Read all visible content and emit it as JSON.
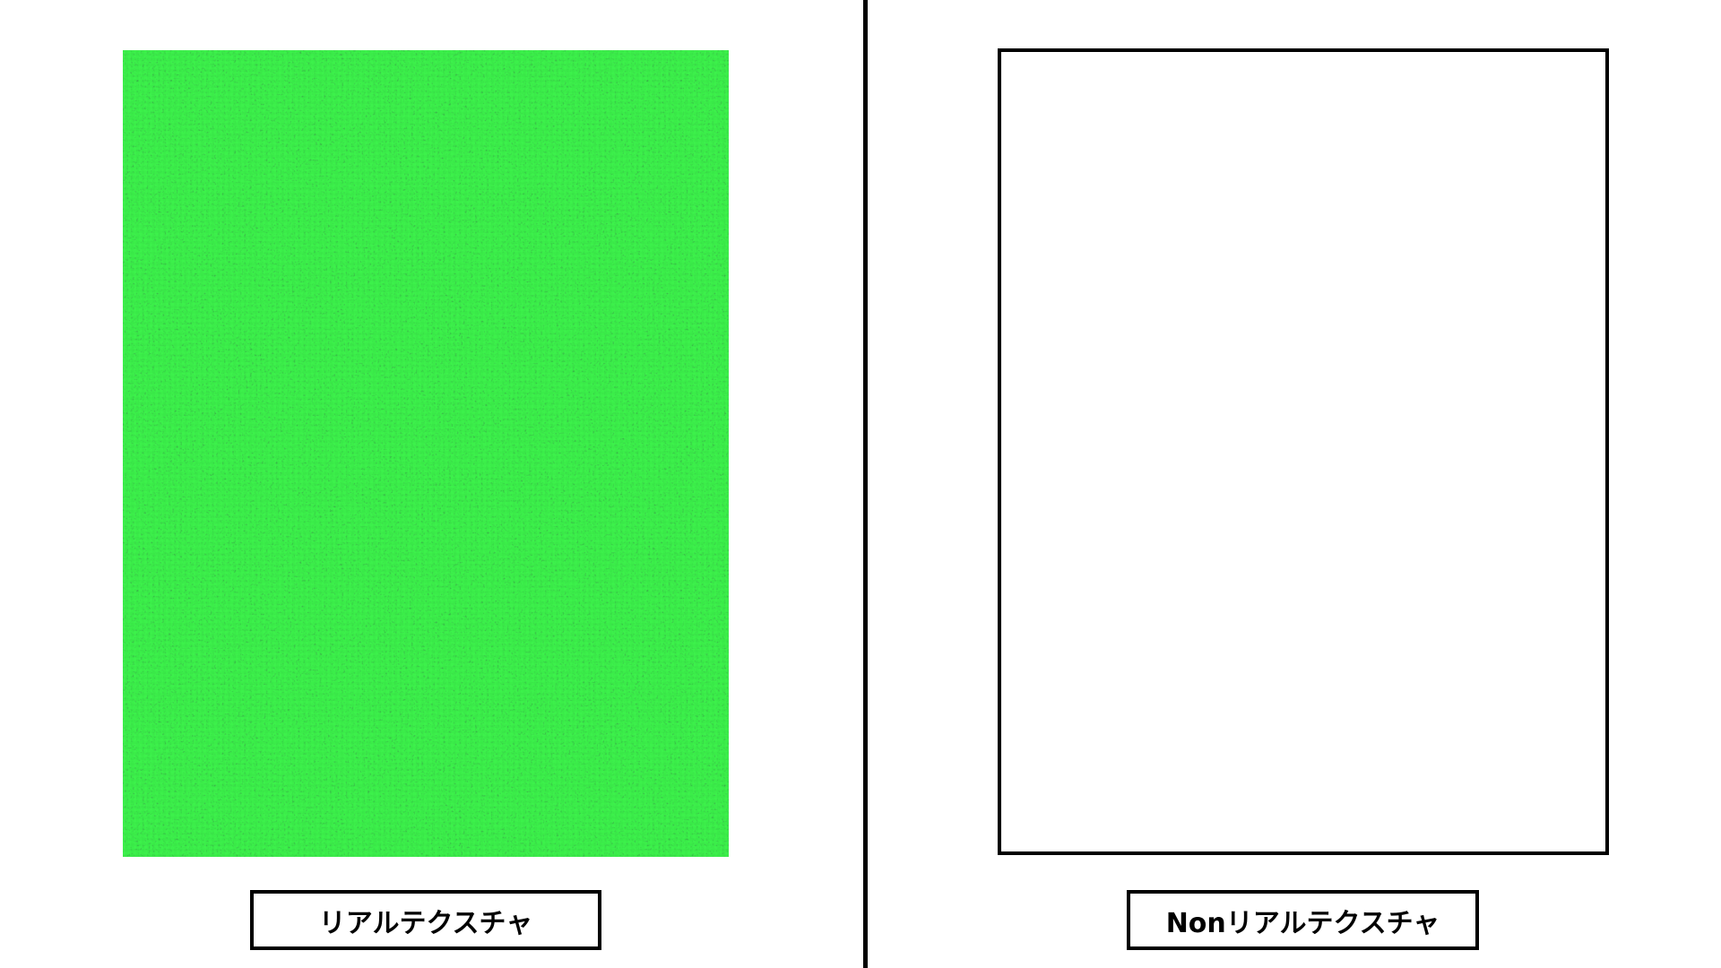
{
  "colors": {
    "background": "#ffffff",
    "divider": "#000000",
    "texture_base": "#1f8a2c",
    "texture_dark": "#0b4a14",
    "texture_light": "#3fc25a"
  },
  "left": {
    "caption": "リアルテクスチャ"
  },
  "right": {
    "caption": "Nonリアルテクスチャ"
  }
}
